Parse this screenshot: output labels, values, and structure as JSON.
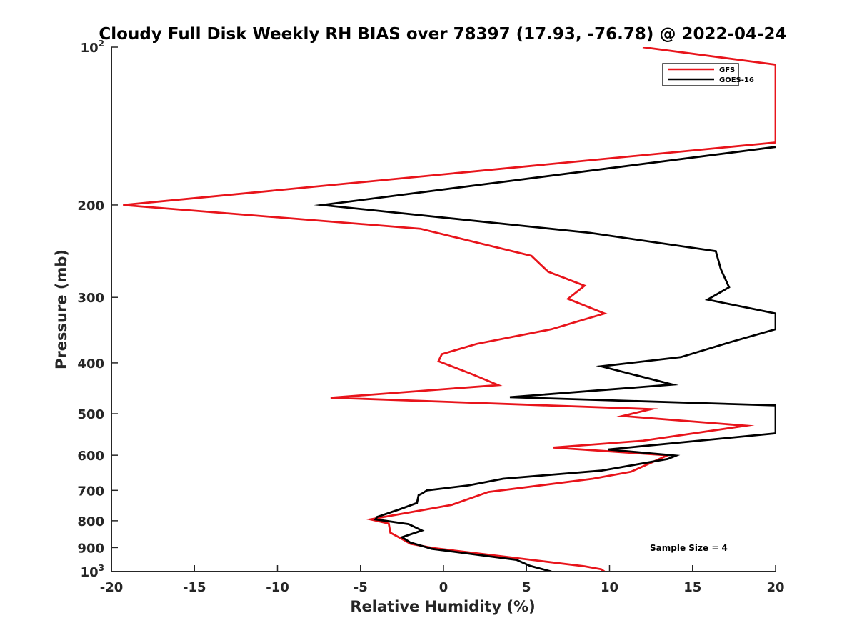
{
  "chart_data": {
    "type": "line",
    "title": "Cloudy Full Disk Weekly RH BIAS over 78397 (17.93, -76.78) @ 2022-04-24",
    "xlabel": "Relative Humidity (%)",
    "ylabel": "Pressure (mb)",
    "xlim": [
      -20,
      20
    ],
    "ylim": [
      100,
      1000
    ],
    "y_scale": "log",
    "y_reversed": true,
    "x_ticks": [
      -20,
      -15,
      -10,
      -5,
      0,
      5,
      10,
      15,
      20
    ],
    "x_tick_labels": [
      "-20",
      "-15",
      "-10",
      "-5",
      "0",
      "5",
      "10",
      "15",
      "20"
    ],
    "y_ticks": [
      100,
      200,
      300,
      400,
      500,
      600,
      700,
      800,
      900,
      1000
    ],
    "y_tick_labels": [
      {
        "base": "10",
        "sup": "2"
      },
      {
        "base": "200",
        "sup": ""
      },
      {
        "base": "300",
        "sup": ""
      },
      {
        "base": "400",
        "sup": ""
      },
      {
        "base": "500",
        "sup": ""
      },
      {
        "base": "600",
        "sup": ""
      },
      {
        "base": "700",
        "sup": ""
      },
      {
        "base": "800",
        "sup": ""
      },
      {
        "base": "900",
        "sup": ""
      },
      {
        "base": "10",
        "sup": "3"
      }
    ],
    "grid": false,
    "legend_position": "top-right",
    "annotation": "Sample Size = 4",
    "series": [
      {
        "name": "GFS",
        "color": "#e8141b",
        "points": [
          [
            12,
            100
          ],
          [
            20,
            108
          ],
          [
            20,
            152
          ],
          [
            -19.3,
            200
          ],
          [
            -1.4,
            222
          ],
          [
            5.3,
            250
          ],
          [
            6.3,
            268
          ],
          [
            8.5,
            285
          ],
          [
            7.5,
            302
          ],
          [
            9.7,
            322
          ],
          [
            6.5,
            345
          ],
          [
            2,
            368
          ],
          [
            -0.1,
            385
          ],
          [
            -0.3,
            397
          ],
          [
            1.7,
            420
          ],
          [
            3.3,
            441
          ],
          [
            -6.8,
            466
          ],
          [
            12.5,
            490
          ],
          [
            10.8,
            505
          ],
          [
            18.2,
            527
          ],
          [
            12,
            563
          ],
          [
            6.6,
            580
          ],
          [
            13.5,
            600
          ],
          [
            11.3,
            645
          ],
          [
            9,
            665
          ],
          [
            2.7,
            705
          ],
          [
            0.5,
            746
          ],
          [
            -4.4,
            795
          ],
          [
            -3.3,
            810
          ],
          [
            -3.2,
            843
          ],
          [
            -2.4,
            870
          ],
          [
            -2,
            885
          ],
          [
            -0.6,
            902
          ],
          [
            8.5,
            977
          ],
          [
            9.5,
            990
          ],
          [
            9.7,
            1000
          ]
        ]
      },
      {
        "name": "GOES-16",
        "color": "#000000",
        "points": [
          [
            20,
            155
          ],
          [
            -7.3,
            200
          ],
          [
            8.8,
            226
          ],
          [
            16.4,
            245
          ],
          [
            16.7,
            265
          ],
          [
            17.2,
            287
          ],
          [
            15.9,
            303
          ],
          [
            20,
            322
          ],
          [
            20,
            345
          ],
          [
            17.3,
            365
          ],
          [
            14.3,
            390
          ],
          [
            9.5,
            406
          ],
          [
            13.8,
            440
          ],
          [
            4,
            465
          ],
          [
            20,
            482
          ],
          [
            20,
            545
          ],
          [
            9.9,
            585
          ],
          [
            14,
            601
          ],
          [
            13.5,
            610
          ],
          [
            9.5,
            642
          ],
          [
            3.6,
            665
          ],
          [
            1.5,
            685
          ],
          [
            -1,
            700
          ],
          [
            -1.3,
            710
          ],
          [
            -1.5,
            715
          ],
          [
            -1.6,
            740
          ],
          [
            -2.6,
            760
          ],
          [
            -4,
            787
          ],
          [
            -4.1,
            795
          ],
          [
            -2.1,
            812
          ],
          [
            -1.3,
            835
          ],
          [
            -2.5,
            860
          ],
          [
            -2,
            880
          ],
          [
            -0.7,
            905
          ],
          [
            4.4,
            950
          ],
          [
            5.2,
            975
          ],
          [
            6.5,
            1000
          ]
        ]
      }
    ]
  }
}
